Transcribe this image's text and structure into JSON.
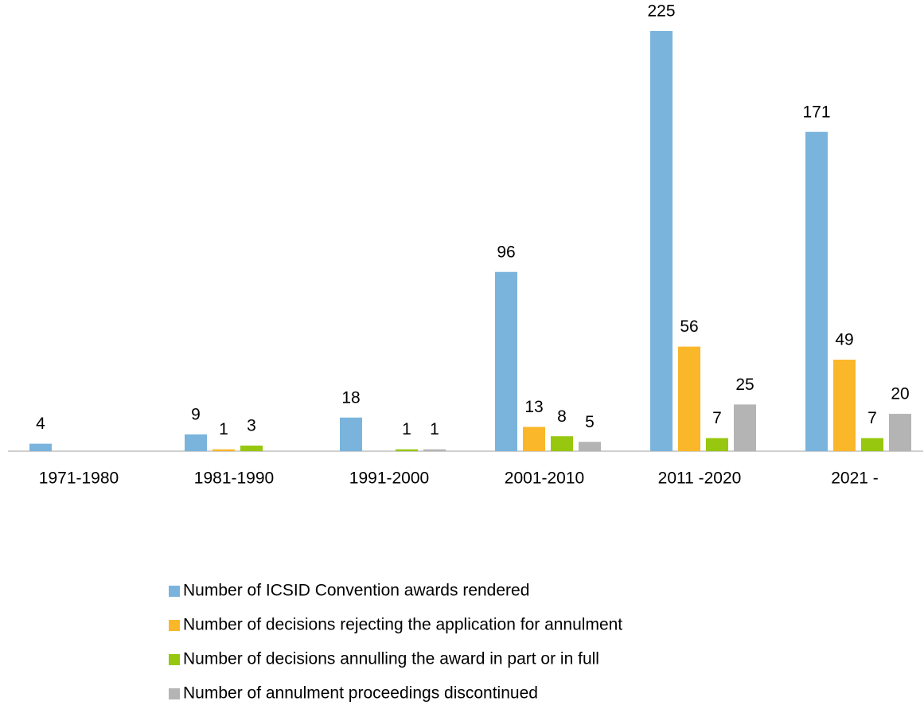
{
  "chart_data": {
    "type": "bar",
    "categories": [
      "1971-1980",
      "1981-1990",
      "1991-2000",
      "2001-2010",
      "2011 -2020",
      "2021 -"
    ],
    "series": [
      {
        "name": "Number of ICSID Convention awards rendered",
        "color": "#7ab4dd",
        "values": [
          4,
          9,
          18,
          96,
          225,
          171
        ]
      },
      {
        "name": "Number of decisions rejecting the application for annulment",
        "color": "#fbb72a",
        "values": [
          null,
          1,
          null,
          13,
          56,
          49
        ]
      },
      {
        "name": "Number of decisions annulling the award in part or in full",
        "color": "#97c70e",
        "values": [
          null,
          3,
          1,
          8,
          7,
          7
        ]
      },
      {
        "name": "Number of annulment proceedings discontinued",
        "color": "#b4b4b4",
        "values": [
          null,
          null,
          1,
          5,
          25,
          20
        ]
      }
    ],
    "grid": false
  }
}
